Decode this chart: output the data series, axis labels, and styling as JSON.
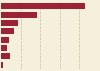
{
  "values": [
    530000,
    230000,
    110000,
    80000,
    50000,
    35000,
    55000,
    10000
  ],
  "bar_color": "#9B2335",
  "background_color": "#F5F0DC",
  "plot_bg_color": "#F5F0DC",
  "xmax": 620000,
  "bar_height": 0.75,
  "figsize": [
    1.0,
    0.71
  ],
  "dpi": 100,
  "grid_color": "#C8BFA0",
  "grid_linewidth": 0.5,
  "n_gridlines": 5
}
